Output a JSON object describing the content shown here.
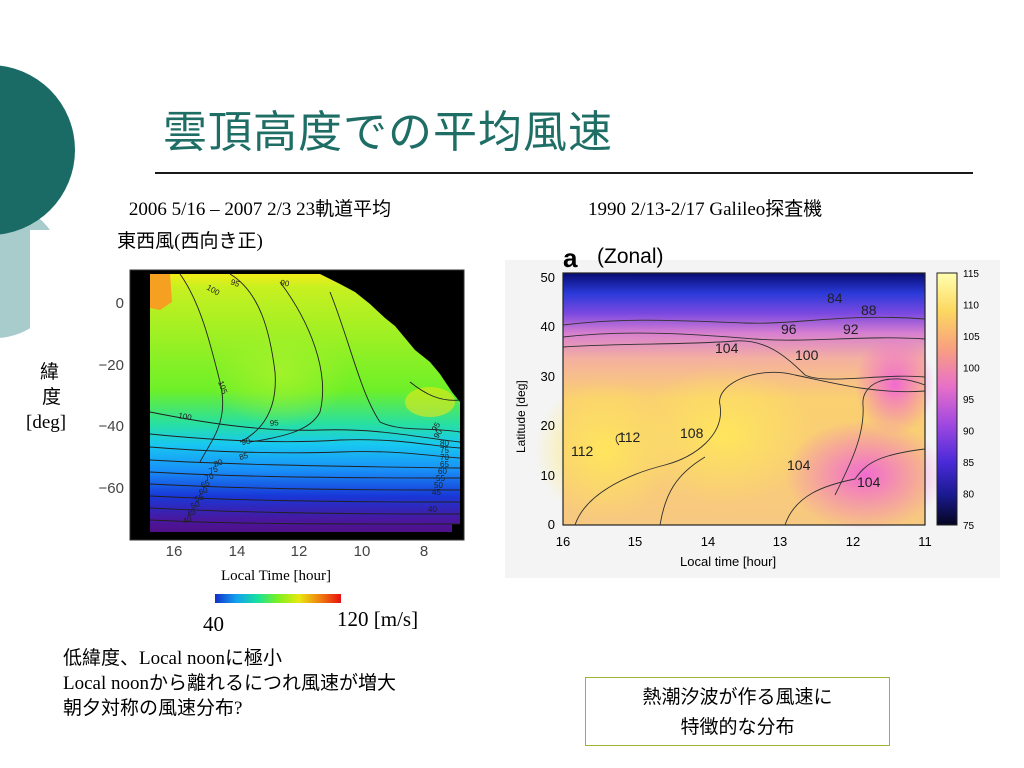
{
  "page": {
    "title": "雲頂高度での平均風速"
  },
  "left_panel": {
    "header_line1": "2006 5/16 – 2007 2/3  23軌道平均",
    "header_line2": "東西風(西向き正)",
    "ylabel_line1": "緯",
    "ylabel_line2": "度",
    "ylabel_line3": "[deg]",
    "xlabel": "Local Time [hour]",
    "colorbar_min": "40",
    "colorbar_max": "120 [m/s]"
  },
  "right_panel": {
    "header": "1990 2/13-2/17 Galileo探査機",
    "panel_letter": "a",
    "panel_title": "(Zonal)",
    "xlabel": "Local time [hour]",
    "ylabel": "Latitude [deg]"
  },
  "notes": {
    "line1": "低緯度、Local noonに極小",
    "line2": "Local noonから離れるにつれ風速が増大",
    "line3": "朝夕対称の風速分布?"
  },
  "callout": {
    "line1": "熱潮汐波が作る風速に",
    "line2": "特徴的な分布"
  },
  "chart_data": [
    {
      "type": "heatmap",
      "x_ticks": [
        "16",
        "14",
        "12",
        "10",
        "8"
      ],
      "y_ticks": [
        "0",
        "−20",
        "−40",
        "−60"
      ],
      "xlim": [
        17,
        7
      ],
      "ylim": [
        -75,
        10
      ],
      "contour_labels": [
        "100",
        "95",
        "90",
        "105",
        "100",
        "95",
        "90",
        "85",
        "80",
        "75",
        "70",
        "65",
        "60",
        "55",
        "50",
        "45",
        "40",
        "95",
        "90",
        "80",
        "75",
        "70",
        "65",
        "60",
        "55",
        "50",
        "45",
        "40"
      ],
      "colorbar": {
        "min": 40,
        "max": 120,
        "colors": [
          "#1230c8",
          "#14a0f0",
          "#16e0a0",
          "#7cf020",
          "#e8e810",
          "#f08010",
          "#e81010"
        ]
      }
    },
    {
      "type": "heatmap",
      "x_ticks": [
        "16",
        "15",
        "14",
        "13",
        "12",
        "11"
      ],
      "y_ticks": [
        "0",
        "10",
        "20",
        "30",
        "40",
        "50"
      ],
      "xlim": [
        16,
        11
      ],
      "ylim": [
        0,
        50
      ],
      "contour_labels": [
        "84",
        "88",
        "96",
        "92",
        "104",
        "100",
        "112",
        "112",
        "108",
        "104",
        "104"
      ],
      "colorbar": {
        "ticks": [
          "115",
          "110",
          "105",
          "100",
          "95",
          "90",
          "85",
          "80",
          "75"
        ],
        "min": 75,
        "max": 115
      }
    }
  ],
  "colors": {
    "title": "#1e6e66",
    "decor_dark": "#1a6b65",
    "decor_light": "#a8cccc",
    "callout_border": "#9bb530"
  }
}
